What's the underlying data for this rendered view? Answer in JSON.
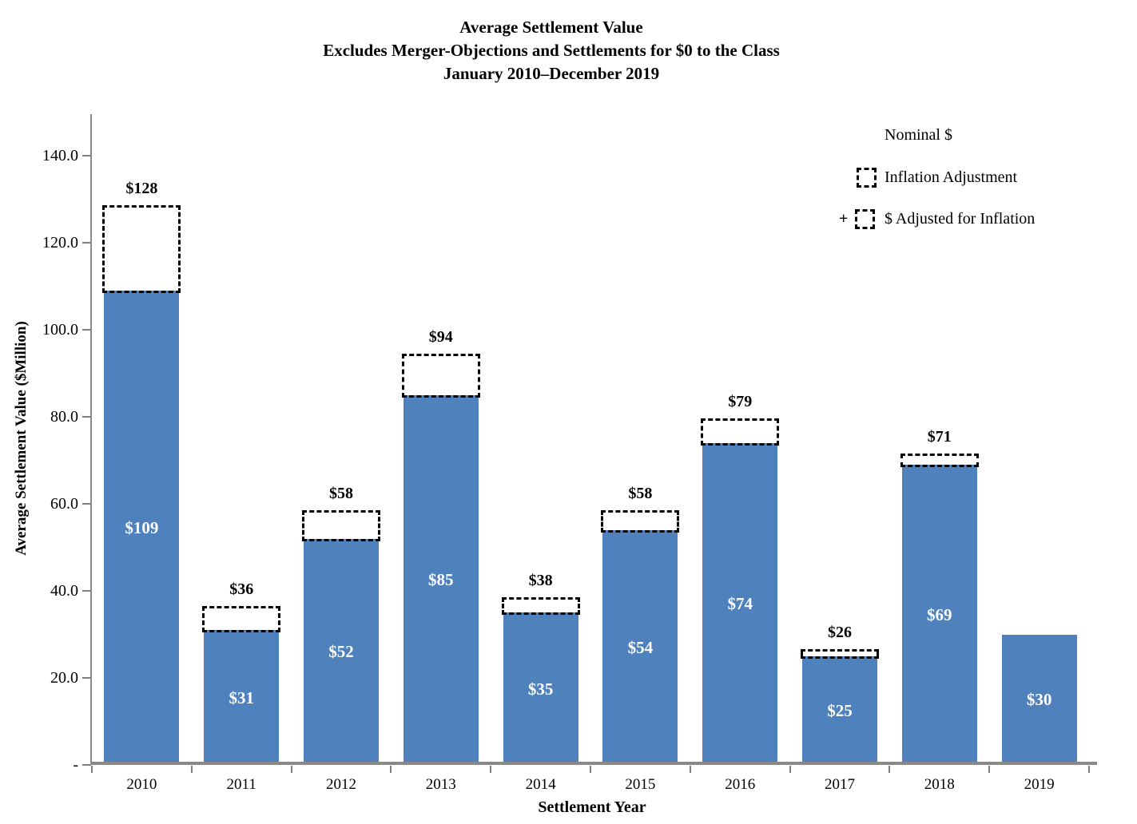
{
  "title": {
    "line1": "Average Settlement Value",
    "line2": "Excludes Merger-Objections and Settlements for $0 to the Class",
    "line3": "January 2010–December 2019"
  },
  "legend": [
    {
      "label": "Nominal $",
      "swatch": "solid-blue-square"
    },
    {
      "label": "Inflation Adjustment",
      "swatch": "dashed-outline-square"
    },
    {
      "label": "$ Adjusted for Inflation",
      "plus": "+",
      "swatch": "solid-plus-dashed"
    }
  ],
  "colors": {
    "bar": "#4F81BD",
    "axis": "#898989",
    "tick": "#808080",
    "dashed_box_border": "#000000",
    "bar_label": "#FFFFFF",
    "adjusted_label": "#000000"
  },
  "chart_data": {
    "type": "bar",
    "title": "Average Settlement Value",
    "subtitle": "Excludes Merger-Objections and Settlements for $0 to the Class",
    "period": "January 2010–December 2019",
    "categories": [
      "2010",
      "2011",
      "2012",
      "2013",
      "2014",
      "2015",
      "2016",
      "2017",
      "2018",
      "2019"
    ],
    "series": [
      {
        "name": "Nominal $",
        "values": [
          109,
          31,
          52,
          85,
          35,
          54,
          74,
          25,
          69,
          30
        ],
        "labels": [
          "$109",
          "$31",
          "$52",
          "$85",
          "$35",
          "$54",
          "$74",
          "$25",
          "$69",
          "$30"
        ]
      },
      {
        "name": "$ Adjusted for Inflation",
        "values": [
          128,
          36,
          58,
          94,
          38,
          58,
          79,
          26,
          71,
          null
        ],
        "labels": [
          "$128",
          "$36",
          "$58",
          "$94",
          "$38",
          "$58",
          "$79",
          "$26",
          "$71",
          null
        ]
      }
    ],
    "xlabel": "Settlement Year",
    "ylabel": "Average Settlement Value ($Million)",
    "ylim": [
      0,
      150
    ],
    "yticks": [
      {
        "value": 0,
        "label": "-"
      },
      {
        "value": 20,
        "label": "20.0"
      },
      {
        "value": 40,
        "label": "40.0"
      },
      {
        "value": 60,
        "label": "60.0"
      },
      {
        "value": 80,
        "label": "80.0"
      },
      {
        "value": 100,
        "label": "100.0"
      },
      {
        "value": 120,
        "label": "120.0"
      },
      {
        "value": 140,
        "label": "140.0"
      }
    ],
    "grid": false,
    "legend_position": "top-right"
  }
}
